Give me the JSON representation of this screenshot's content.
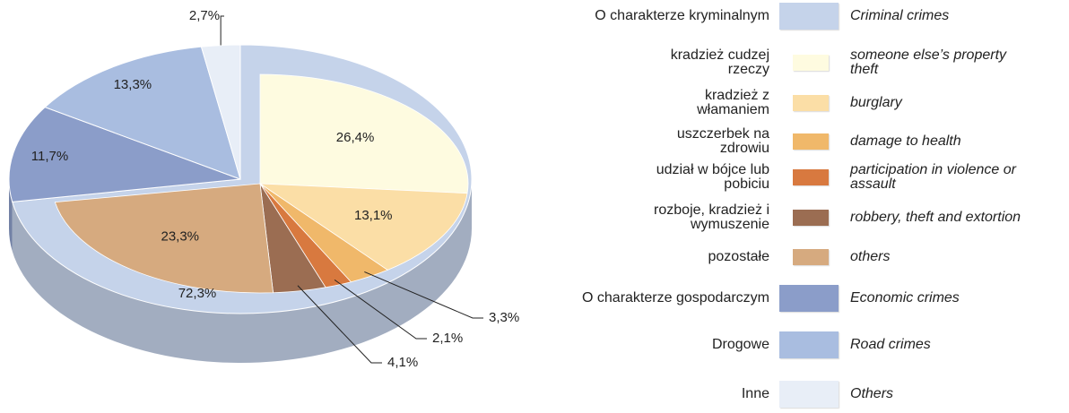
{
  "chart_data": {
    "type": "pie",
    "categories": [
      "O charakterze kryminalnym",
      "O charakterze gospodarczym",
      "Drogowe",
      "Inne"
    ],
    "categories_en": [
      "Criminal crimes",
      "Economic crimes",
      "Road crimes",
      "Others"
    ],
    "values": [
      72.3,
      11.7,
      13.3,
      2.7
    ],
    "value_labels": [
      "72,3%",
      "11,7%",
      "13,3%",
      "2,7%"
    ],
    "colors": [
      "#c5d3ea",
      "#8b9dc9",
      "#a9bde0",
      "#e8eef7"
    ],
    "breakdown": {
      "categories": [
        "kradzież cudzej rzeczy",
        "kradzież z włamaniem",
        "uszczerbek na zdrowiu",
        "udział w bójce lub pobiciu",
        "rozboje, kradzież i wymuszenie",
        "pozostałe"
      ],
      "categories_en": [
        "someone else’s property theft",
        "burglary",
        "damage to health",
        "participation in violence or assault",
        "robbery, theft and extortion",
        "others"
      ],
      "values": [
        26.4,
        13.1,
        3.3,
        2.1,
        4.1,
        23.3
      ],
      "value_labels": [
        "26,4%",
        "13,1%",
        "3,3%",
        "2,1%",
        "4,1%",
        "23,3%"
      ],
      "colors": [
        "#fefbe0",
        "#fbdea6",
        "#f0b86a",
        "#d8793f",
        "#9b6d52",
        "#d6aa7f"
      ]
    }
  }
}
